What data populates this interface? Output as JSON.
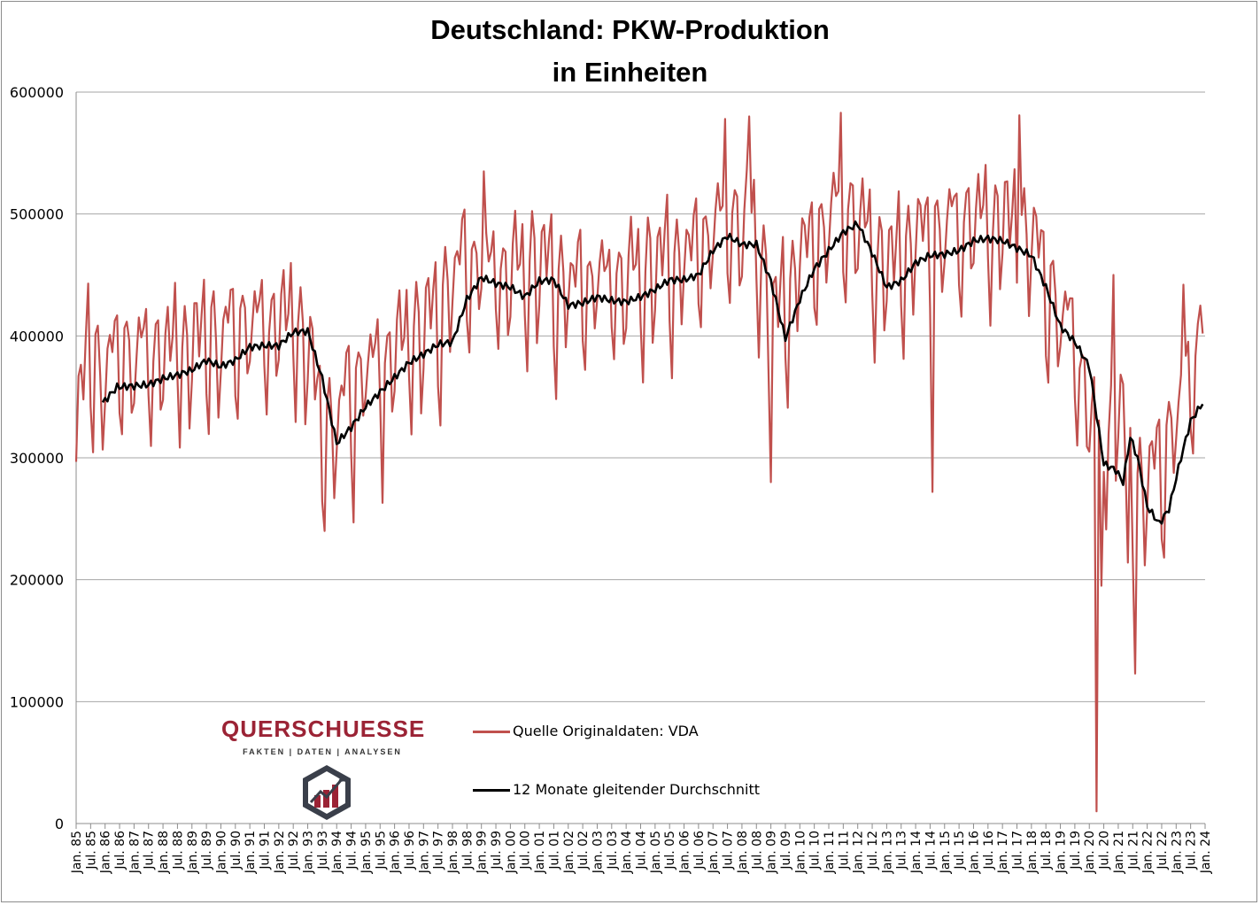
{
  "chart_data": {
    "type": "line",
    "title": "Deutschland: PKW-Produktion",
    "subtitle": "in Einheiten",
    "xlabel": "",
    "ylabel": "",
    "ylim": [
      0,
      600000
    ],
    "yticks": [
      "0",
      "100000",
      "200000",
      "300000",
      "400000",
      "500000",
      "600000"
    ],
    "xticks": [
      "Jan. 85",
      "Jul. 85",
      "Jan. 86",
      "Jul. 86",
      "Jan. 87",
      "Jul. 87",
      "Jan. 88",
      "Jul. 88",
      "Jan. 89",
      "Jul. 89",
      "Jan. 90",
      "Jul. 90",
      "Jan. 91",
      "Jul. 91",
      "Jan. 92",
      "Jul. 92",
      "Jan. 93",
      "Jul. 93",
      "Jan. 94",
      "Jul. 94",
      "Jan. 95",
      "Jul. 95",
      "Jan. 96",
      "Jul. 96",
      "Jan. 97",
      "Jul. 97",
      "Jan. 98",
      "Jul. 98",
      "Jan. 99",
      "Jul. 99",
      "Jan. 00",
      "Jul. 00",
      "Jan. 01",
      "Jul. 01",
      "Jan. 02",
      "Jul. 02",
      "Jan. 03",
      "Jul. 03",
      "Jan. 04",
      "Jul. 04",
      "Jan. 05",
      "Jul. 05",
      "Jan. 06",
      "Jul. 06",
      "Jan. 07",
      "Jul. 07",
      "Jan. 08",
      "Jul. 08",
      "Jan. 09",
      "Jul. 09",
      "Jan. 10",
      "Jul. 10",
      "Jan. 11",
      "Jul. 11",
      "Jan. 12",
      "Jul. 12",
      "Jan. 13",
      "Jul. 13",
      "Jan. 14",
      "Jul. 14",
      "Jan. 15",
      "Jul. 15",
      "Jan. 16",
      "Jul. 16",
      "Jan. 17",
      "Jul. 17",
      "Jan. 18",
      "Jul. 18",
      "Jan. 19",
      "Jul. 19",
      "Jan. 20",
      "Jul. 20",
      "Jan. 21",
      "Jul. 21",
      "Jan. 22",
      "Jul. 22",
      "Jan. 23",
      "Jul. 23",
      "Jan. 24"
    ],
    "grid": true,
    "legend_position": "bottom-center",
    "series": [
      {
        "name": "Quelle Originaldaten: VDA",
        "color": "#c0504d",
        "kind": "monthly",
        "anchors": [
          [
            "1985-01",
            300000
          ],
          [
            "1985-06",
            380000
          ],
          [
            "1986-01",
            345000
          ],
          [
            "1986-07",
            380000
          ],
          [
            "1987-01",
            360000
          ],
          [
            "1987-07",
            375000
          ],
          [
            "1988-01",
            365000
          ],
          [
            "1988-07",
            380000
          ],
          [
            "1989-01",
            370000
          ],
          [
            "1989-07",
            390000
          ],
          [
            "1990-01",
            375000
          ],
          [
            "1990-07",
            395000
          ],
          [
            "1991-01",
            390000
          ],
          [
            "1991-07",
            395000
          ],
          [
            "1992-01",
            395000
          ],
          [
            "1992-07",
            400000
          ],
          [
            "1993-01",
            375000
          ],
          [
            "1993-07",
            305000
          ],
          [
            "1994-01",
            310000
          ],
          [
            "1994-07",
            345000
          ],
          [
            "1995-01",
            355000
          ],
          [
            "1995-07",
            365000
          ],
          [
            "1996-01",
            370000
          ],
          [
            "1996-07",
            385000
          ],
          [
            "1997-01",
            390000
          ],
          [
            "1997-07",
            400000
          ],
          [
            "1998-01",
            430000
          ],
          [
            "1998-07",
            450000
          ],
          [
            "1999-01",
            440000
          ],
          [
            "1999-07",
            440000
          ],
          [
            "2000-01",
            435000
          ],
          [
            "2000-07",
            440000
          ],
          [
            "2001-01",
            445000
          ],
          [
            "2001-07",
            430000
          ],
          [
            "2002-01",
            425000
          ],
          [
            "2002-07",
            430000
          ],
          [
            "2003-01",
            430000
          ],
          [
            "2003-07",
            430000
          ],
          [
            "2004-01",
            430000
          ],
          [
            "2004-07",
            435000
          ],
          [
            "2005-01",
            440000
          ],
          [
            "2005-07",
            445000
          ],
          [
            "2006-01",
            445000
          ],
          [
            "2006-07",
            460000
          ],
          [
            "2007-01",
            470000
          ],
          [
            "2007-07",
            480000
          ],
          [
            "2008-01",
            475000
          ],
          [
            "2008-07",
            470000
          ],
          [
            "2009-01",
            400000
          ],
          [
            "2009-07",
            410000
          ],
          [
            "2010-01",
            450000
          ],
          [
            "2010-07",
            460000
          ],
          [
            "2011-01",
            480000
          ],
          [
            "2011-07",
            485000
          ],
          [
            "2012-01",
            480000
          ],
          [
            "2012-07",
            455000
          ],
          [
            "2013-01",
            440000
          ],
          [
            "2013-07",
            450000
          ],
          [
            "2014-01",
            465000
          ],
          [
            "2014-07",
            465000
          ],
          [
            "2015-01",
            470000
          ],
          [
            "2015-07",
            475000
          ],
          [
            "2016-01",
            480000
          ],
          [
            "2016-07",
            478000
          ],
          [
            "2017-01",
            478000
          ],
          [
            "2017-07",
            470000
          ],
          [
            "2018-01",
            465000
          ],
          [
            "2018-07",
            430000
          ],
          [
            "2019-01",
            400000
          ],
          [
            "2019-07",
            380000
          ],
          [
            "2020-01",
            320000
          ],
          [
            "2020-07",
            300000
          ],
          [
            "2021-01",
            330000
          ],
          [
            "2021-07",
            250000
          ],
          [
            "2022-01",
            265000
          ],
          [
            "2022-07",
            280000
          ],
          [
            "2023-01",
            320000
          ],
          [
            "2023-07",
            350000
          ],
          [
            "2023-12",
            400000
          ]
        ],
        "seasonal_amplitude": 65000,
        "extremes": [
          [
            "1993-08",
            240000
          ],
          [
            "1994-08",
            247000
          ],
          [
            "1995-08",
            263000
          ],
          [
            "1999-02",
            535000
          ],
          [
            "2007-06",
            578000
          ],
          [
            "2008-04",
            580000
          ],
          [
            "2009-01",
            280000
          ],
          [
            "2011-06",
            583000
          ],
          [
            "2014-08",
            272000
          ],
          [
            "2017-08",
            581000
          ],
          [
            "2020-04",
            10000
          ],
          [
            "2020-06",
            195000
          ],
          [
            "2020-11",
            450000
          ],
          [
            "2021-08",
            123000
          ],
          [
            "2021-05",
            214000
          ],
          [
            "2023-04",
            442000
          ],
          [
            "2023-12",
            402000
          ]
        ]
      },
      {
        "name": "12 Monate gleitender Durchschnitt",
        "color": "#000000",
        "kind": "moving-average",
        "points": [
          [
            "1985-12",
            345000
          ],
          [
            "1986-06",
            358000
          ],
          [
            "1987-01",
            359000
          ],
          [
            "1987-07",
            360000
          ],
          [
            "1988-01",
            365000
          ],
          [
            "1988-07",
            368000
          ],
          [
            "1989-01",
            372000
          ],
          [
            "1989-07",
            380000
          ],
          [
            "1990-01",
            375000
          ],
          [
            "1990-07",
            380000
          ],
          [
            "1991-01",
            391000
          ],
          [
            "1991-07",
            392000
          ],
          [
            "1992-01",
            392000
          ],
          [
            "1992-07",
            403000
          ],
          [
            "1993-01",
            404000
          ],
          [
            "1993-07",
            365000
          ],
          [
            "1994-01",
            312000
          ],
          [
            "1994-07",
            325000
          ],
          [
            "1995-01",
            342000
          ],
          [
            "1995-07",
            354000
          ],
          [
            "1996-01",
            366000
          ],
          [
            "1996-07",
            378000
          ],
          [
            "1997-01",
            385000
          ],
          [
            "1997-07",
            393000
          ],
          [
            "1998-01",
            395000
          ],
          [
            "1998-07",
            430000
          ],
          [
            "1999-01",
            448000
          ],
          [
            "1999-07",
            443000
          ],
          [
            "2000-01",
            440000
          ],
          [
            "2000-07",
            432000
          ],
          [
            "2001-01",
            445000
          ],
          [
            "2001-07",
            446000
          ],
          [
            "2002-01",
            425000
          ],
          [
            "2002-07",
            427000
          ],
          [
            "2003-01",
            432000
          ],
          [
            "2003-07",
            429000
          ],
          [
            "2004-01",
            428000
          ],
          [
            "2004-07",
            432000
          ],
          [
            "2005-01",
            438000
          ],
          [
            "2005-07",
            446000
          ],
          [
            "2006-01",
            446000
          ],
          [
            "2006-07",
            450000
          ],
          [
            "2007-01",
            470000
          ],
          [
            "2007-07",
            482000
          ],
          [
            "2008-01",
            475000
          ],
          [
            "2008-07",
            475000
          ],
          [
            "2009-01",
            445000
          ],
          [
            "2009-07",
            398000
          ],
          [
            "2010-01",
            430000
          ],
          [
            "2010-07",
            455000
          ],
          [
            "2011-01",
            470000
          ],
          [
            "2011-07",
            485000
          ],
          [
            "2012-01",
            492000
          ],
          [
            "2012-07",
            468000
          ],
          [
            "2013-01",
            440000
          ],
          [
            "2013-07",
            445000
          ],
          [
            "2014-01",
            460000
          ],
          [
            "2014-07",
            466000
          ],
          [
            "2015-01",
            467000
          ],
          [
            "2015-07",
            470000
          ],
          [
            "2016-01",
            478000
          ],
          [
            "2016-07",
            480000
          ],
          [
            "2017-01",
            478000
          ],
          [
            "2017-07",
            472000
          ],
          [
            "2018-01",
            466000
          ],
          [
            "2018-07",
            440000
          ],
          [
            "2019-01",
            408000
          ],
          [
            "2019-07",
            395000
          ],
          [
            "2020-01",
            375000
          ],
          [
            "2020-07",
            295000
          ],
          [
            "2020-12",
            290000
          ],
          [
            "2021-03",
            280000
          ],
          [
            "2021-06",
            317000
          ],
          [
            "2021-09",
            300000
          ],
          [
            "2022-01",
            260000
          ],
          [
            "2022-06",
            246000
          ],
          [
            "2022-10",
            258000
          ],
          [
            "2023-03",
            300000
          ],
          [
            "2023-07",
            330000
          ],
          [
            "2023-12",
            345000
          ]
        ]
      }
    ]
  },
  "logo": {
    "wordmark": "QUERSCHUESSE",
    "tagline": "FAKTEN | DATEN | ANALYSEN",
    "color": "#9b2335"
  }
}
